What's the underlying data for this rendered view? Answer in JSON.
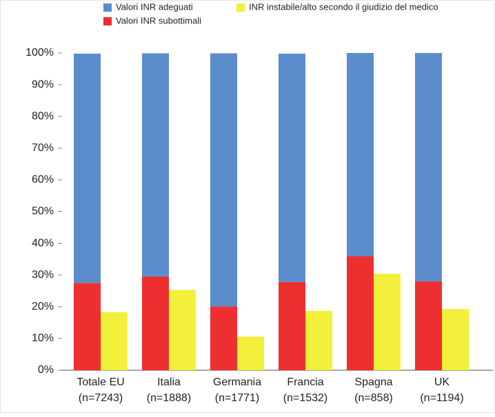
{
  "chart_data": {
    "type": "bar",
    "categories": [
      [
        "Totale EU",
        "(n=7243)"
      ],
      [
        "Italia",
        "(n=1888)"
      ],
      [
        "Germania",
        "(n=1771)"
      ],
      [
        "Francia",
        "(n=1532)"
      ],
      [
        "Spagna",
        "(n=858)"
      ],
      [
        "UK",
        "(n=1194)"
      ]
    ],
    "series": [
      {
        "name": "Valori INR adeguati",
        "color": "#5b8ccc",
        "values": [
          72.3,
          70.4,
          79.8,
          72.0,
          64.1,
          72.0
        ]
      },
      {
        "name": "Valori INR subottimali",
        "color": "#ee2f2f",
        "values": [
          27.5,
          29.5,
          20.1,
          27.8,
          35.9,
          28.0
        ]
      },
      {
        "name": "INR instabile/alto secondo il giudizio del medico",
        "color": "#f2f03a",
        "values": [
          18.3,
          25.3,
          10.6,
          18.7,
          30.4,
          19.3
        ]
      }
    ],
    "ylim": [
      0,
      100
    ],
    "yticks": [
      {
        "value": 0,
        "label": "0%"
      },
      {
        "value": 10,
        "label": "10%"
      },
      {
        "value": 20,
        "label": "20%"
      },
      {
        "value": 30,
        "label": "30%"
      },
      {
        "value": 40,
        "label": "40%"
      },
      {
        "value": 50,
        "label": "50%"
      },
      {
        "value": 60,
        "label": "60%"
      },
      {
        "value": 70,
        "label": "70%"
      },
      {
        "value": 80,
        "label": "80%"
      },
      {
        "value": 90,
        "label": "90%"
      },
      {
        "value": 100,
        "label": "100%"
      }
    ]
  }
}
